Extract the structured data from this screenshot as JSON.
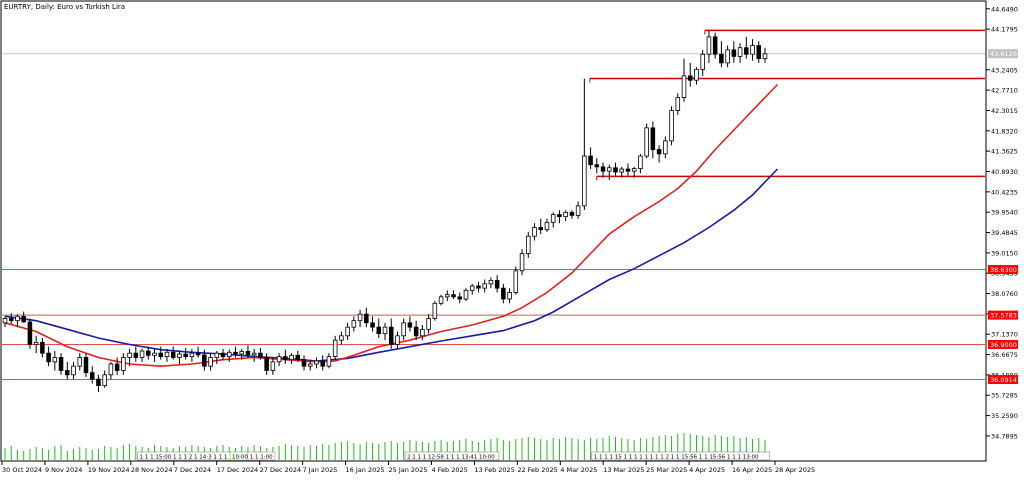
{
  "chart_title": "EURTRY, Daily:  Euro vs Turkish Lira",
  "chart_data": {
    "type": "candlestick",
    "symbol": "EURTRY",
    "timeframe": "Daily",
    "description": "Euro vs Turkish Lira",
    "y_axis_labels": [
      "44.6490",
      "44.1795",
      "43.2405",
      "42.7710",
      "42.3015",
      "41.8320",
      "41.3625",
      "40.8930",
      "40.4235",
      "39.9540",
      "39.4845",
      "39.0150",
      "38.5455",
      "38.0760",
      "37.6065",
      "37.1370",
      "36.6675",
      "36.1980",
      "35.7285",
      "35.2590",
      "34.7895"
    ],
    "ylim": [
      34.58,
      44.69
    ],
    "x_axis_labels": [
      "30 Oct 2024",
      "9 Nov 2024",
      "19 Nov 2024",
      "28 Nov 2024",
      "7 Dec 2024",
      "17 Dec 2024",
      "27 Dec 2024",
      "7 Jan 2025",
      "16 Jan 2025",
      "25 Jan 2025",
      "4 Feb 2025",
      "13 Feb 2025",
      "22 Feb 2025",
      "4 Mar 2025",
      "13 Mar 2025",
      "25 Mar 2025",
      "4 Apr 2025",
      "16 Apr 2025",
      "28 Apr 2025"
    ],
    "price_tags": [
      {
        "value": "43.6120",
        "color": "#c0c0c0",
        "text_color": "#ffffff"
      },
      {
        "value": "38.6300",
        "color": "#ff0000",
        "text_color": "#ffffff"
      },
      {
        "value": "37.5783",
        "color": "#ff0000",
        "text_color": "#ffffff"
      },
      {
        "value": "36.9000",
        "color": "#ff0000",
        "text_color": "#ffffff"
      },
      {
        "value": "36.0914",
        "color": "#ff0000",
        "text_color": "#ffffff"
      }
    ],
    "horizontal_levels": [
      {
        "price": 44.15,
        "color": "#cc0000",
        "from": 0.715,
        "to": 1.0
      },
      {
        "price": 43.04,
        "color": "#cc0000",
        "from": 0.598,
        "to": 1.0
      },
      {
        "price": 40.78,
        "color": "#cc0000",
        "from": 0.605,
        "to": 1.0
      },
      {
        "price": 38.63,
        "color": "#e05050",
        "from": 0.0,
        "to": 1.0
      },
      {
        "price": 37.5783,
        "color": "#e05050",
        "from": 0.0,
        "to": 1.0
      },
      {
        "price": 36.9,
        "color": "#e05050",
        "from": 0.0,
        "to": 1.0
      },
      {
        "price": 36.0914,
        "color": "#e05050",
        "from": 0.0,
        "to": 1.0
      }
    ],
    "last_price": 43.612,
    "candles": [
      [
        37.4,
        37.55,
        37.3,
        37.5
      ],
      [
        37.5,
        37.62,
        37.38,
        37.45
      ],
      [
        37.45,
        37.6,
        37.3,
        37.55
      ],
      [
        37.55,
        37.66,
        37.4,
        37.42
      ],
      [
        37.42,
        37.5,
        36.8,
        36.9
      ],
      [
        36.9,
        37.1,
        36.7,
        36.95
      ],
      [
        36.95,
        37.05,
        36.6,
        36.7
      ],
      [
        36.7,
        36.85,
        36.4,
        36.5
      ],
      [
        36.5,
        36.75,
        36.3,
        36.6
      ],
      [
        36.6,
        36.7,
        36.2,
        36.3
      ],
      [
        36.3,
        36.5,
        36.1,
        36.2
      ],
      [
        36.2,
        36.5,
        36.1,
        36.4
      ],
      [
        36.4,
        36.7,
        36.3,
        36.6
      ],
      [
        36.6,
        36.7,
        36.15,
        36.25
      ],
      [
        36.25,
        36.4,
        36.0,
        36.1
      ],
      [
        36.1,
        36.2,
        35.8,
        35.95
      ],
      [
        35.95,
        36.3,
        35.9,
        36.2
      ],
      [
        36.2,
        36.5,
        36.1,
        36.45
      ],
      [
        36.45,
        36.6,
        36.2,
        36.3
      ],
      [
        36.3,
        36.7,
        36.2,
        36.6
      ],
      [
        36.6,
        36.8,
        36.4,
        36.7
      ],
      [
        36.7,
        36.85,
        36.5,
        36.6
      ],
      [
        36.6,
        36.8,
        36.5,
        36.75
      ],
      [
        36.75,
        36.85,
        36.55,
        36.65
      ],
      [
        36.65,
        36.8,
        36.5,
        36.7
      ],
      [
        36.7,
        36.85,
        36.55,
        36.62
      ],
      [
        36.62,
        36.8,
        36.5,
        36.72
      ],
      [
        36.72,
        36.85,
        36.55,
        36.6
      ],
      [
        36.6,
        36.75,
        36.45,
        36.68
      ],
      [
        36.68,
        36.82,
        36.55,
        36.62
      ],
      [
        36.62,
        36.8,
        36.5,
        36.7
      ],
      [
        36.7,
        36.85,
        36.6,
        36.66
      ],
      [
        36.66,
        36.78,
        36.3,
        36.4
      ],
      [
        36.4,
        36.7,
        36.3,
        36.6
      ],
      [
        36.6,
        36.75,
        36.45,
        36.7
      ],
      [
        36.7,
        36.8,
        36.55,
        36.62
      ],
      [
        36.62,
        36.78,
        36.5,
        36.72
      ],
      [
        36.72,
        36.85,
        36.6,
        36.68
      ],
      [
        36.68,
        36.8,
        36.55,
        36.74
      ],
      [
        36.74,
        36.88,
        36.6,
        36.66
      ],
      [
        36.66,
        36.8,
        36.5,
        36.7
      ],
      [
        36.7,
        36.82,
        36.55,
        36.6
      ],
      [
        36.6,
        36.7,
        36.2,
        36.3
      ],
      [
        36.3,
        36.6,
        36.2,
        36.5
      ],
      [
        36.5,
        36.7,
        36.4,
        36.62
      ],
      [
        36.62,
        36.78,
        36.45,
        36.55
      ],
      [
        36.55,
        36.7,
        36.45,
        36.65
      ],
      [
        36.65,
        36.75,
        36.5,
        36.55
      ],
      [
        36.55,
        36.65,
        36.3,
        36.4
      ],
      [
        36.4,
        36.55,
        36.3,
        36.45
      ],
      [
        36.45,
        36.6,
        36.35,
        36.52
      ],
      [
        36.52,
        36.65,
        36.3,
        36.4
      ],
      [
        36.4,
        36.7,
        36.35,
        36.62
      ],
      [
        36.62,
        37.1,
        36.55,
        37.0
      ],
      [
        37.0,
        37.2,
        36.9,
        37.1
      ],
      [
        37.1,
        37.4,
        37.0,
        37.3
      ],
      [
        37.3,
        37.55,
        37.2,
        37.45
      ],
      [
        37.45,
        37.7,
        37.3,
        37.6
      ],
      [
        37.6,
        37.75,
        37.3,
        37.4
      ],
      [
        37.4,
        37.55,
        37.2,
        37.3
      ],
      [
        37.3,
        37.5,
        37.05,
        37.15
      ],
      [
        37.15,
        37.4,
        37.0,
        37.3
      ],
      [
        37.3,
        37.5,
        36.8,
        36.9
      ],
      [
        36.9,
        37.2,
        36.8,
        37.1
      ],
      [
        37.1,
        37.5,
        37.0,
        37.4
      ],
      [
        37.4,
        37.55,
        37.2,
        37.3
      ],
      [
        37.3,
        37.45,
        37.0,
        37.1
      ],
      [
        37.1,
        37.35,
        37.0,
        37.25
      ],
      [
        37.25,
        37.6,
        37.15,
        37.5
      ],
      [
        37.5,
        37.9,
        37.45,
        37.85
      ],
      [
        37.85,
        38.05,
        37.8,
        38.0
      ],
      [
        38.0,
        38.15,
        37.9,
        38.05
      ],
      [
        38.05,
        38.15,
        37.95,
        38.0
      ],
      [
        38.0,
        38.1,
        37.85,
        37.95
      ],
      [
        37.95,
        38.2,
        37.9,
        38.15
      ],
      [
        38.15,
        38.3,
        38.05,
        38.25
      ],
      [
        38.25,
        38.35,
        38.1,
        38.2
      ],
      [
        38.2,
        38.4,
        38.1,
        38.3
      ],
      [
        38.3,
        38.45,
        38.2,
        38.38
      ],
      [
        38.38,
        38.5,
        38.1,
        38.2
      ],
      [
        38.2,
        38.3,
        37.85,
        37.95
      ],
      [
        37.95,
        38.2,
        37.85,
        38.1
      ],
      [
        38.1,
        38.7,
        38.05,
        38.6
      ],
      [
        38.6,
        39.1,
        38.5,
        39.0
      ],
      [
        39.0,
        39.5,
        38.9,
        39.4
      ],
      [
        39.4,
        39.7,
        39.3,
        39.6
      ],
      [
        39.6,
        39.8,
        39.45,
        39.55
      ],
      [
        39.55,
        39.8,
        39.5,
        39.72
      ],
      [
        39.72,
        39.95,
        39.6,
        39.9
      ],
      [
        39.9,
        40.0,
        39.7,
        39.85
      ],
      [
        39.85,
        40.0,
        39.75,
        39.95
      ],
      [
        39.95,
        40.0,
        39.8,
        39.88
      ],
      [
        39.88,
        40.2,
        39.8,
        40.1
      ],
      [
        40.1,
        43.04,
        40.0,
        41.25
      ],
      [
        41.25,
        41.45,
        40.95,
        41.05
      ],
      [
        41.05,
        41.2,
        40.85,
        41.0
      ],
      [
        41.0,
        41.1,
        40.75,
        40.9
      ],
      [
        40.9,
        41.05,
        40.7,
        40.98
      ],
      [
        40.98,
        41.1,
        40.8,
        40.88
      ],
      [
        40.88,
        41.0,
        40.75,
        40.95
      ],
      [
        40.95,
        41.08,
        40.8,
        40.9
      ],
      [
        40.9,
        41.0,
        40.75,
        40.96
      ],
      [
        40.96,
        41.3,
        40.85,
        41.25
      ],
      [
        41.25,
        42.0,
        41.2,
        41.9
      ],
      [
        41.9,
        42.05,
        41.2,
        41.4
      ],
      [
        41.4,
        41.5,
        41.1,
        41.3
      ],
      [
        41.3,
        41.7,
        41.2,
        41.6
      ],
      [
        41.6,
        42.4,
        41.5,
        42.3
      ],
      [
        42.3,
        42.7,
        42.2,
        42.6
      ],
      [
        42.6,
        43.5,
        42.5,
        43.1
      ],
      [
        43.1,
        43.4,
        42.85,
        43.0
      ],
      [
        43.0,
        43.3,
        42.9,
        43.25
      ],
      [
        43.25,
        43.7,
        43.1,
        43.6
      ],
      [
        43.6,
        44.15,
        43.4,
        44.0
      ],
      [
        44.0,
        44.1,
        43.5,
        43.6
      ],
      [
        43.6,
        43.9,
        43.3,
        43.4
      ],
      [
        43.4,
        43.8,
        43.3,
        43.7
      ],
      [
        43.7,
        43.9,
        43.4,
        43.55
      ],
      [
        43.55,
        43.85,
        43.4,
        43.75
      ],
      [
        43.75,
        44.0,
        43.5,
        43.6
      ],
      [
        43.6,
        43.95,
        43.45,
        43.8
      ],
      [
        43.8,
        43.9,
        43.4,
        43.5
      ],
      [
        43.5,
        43.75,
        43.4,
        43.61
      ]
    ],
    "ma_fast": [
      [
        0,
        37.4
      ],
      [
        5,
        37.2
      ],
      [
        10,
        36.85
      ],
      [
        15,
        36.6
      ],
      [
        20,
        36.45
      ],
      [
        25,
        36.4
      ],
      [
        30,
        36.45
      ],
      [
        35,
        36.55
      ],
      [
        40,
        36.6
      ],
      [
        45,
        36.55
      ],
      [
        50,
        36.5
      ],
      [
        53,
        36.52
      ],
      [
        56,
        36.65
      ],
      [
        60,
        36.85
      ],
      [
        65,
        37.0
      ],
      [
        70,
        37.2
      ],
      [
        75,
        37.35
      ],
      [
        80,
        37.55
      ],
      [
        83,
        37.75
      ],
      [
        87,
        38.1
      ],
      [
        91,
        38.55
      ],
      [
        94,
        39.0
      ],
      [
        97,
        39.45
      ],
      [
        101,
        39.85
      ],
      [
        105,
        40.2
      ],
      [
        108,
        40.5
      ],
      [
        111,
        40.9
      ],
      [
        114,
        41.4
      ],
      [
        117,
        41.85
      ],
      [
        120,
        42.3
      ],
      [
        122,
        42.6
      ],
      [
        124,
        42.9
      ]
    ],
    "ma_slow": [
      [
        0,
        37.55
      ],
      [
        5,
        37.45
      ],
      [
        10,
        37.25
      ],
      [
        15,
        37.05
      ],
      [
        20,
        36.9
      ],
      [
        25,
        36.78
      ],
      [
        30,
        36.72
      ],
      [
        35,
        36.68
      ],
      [
        40,
        36.62
      ],
      [
        45,
        36.58
      ],
      [
        50,
        36.52
      ],
      [
        55,
        36.58
      ],
      [
        60,
        36.72
      ],
      [
        65,
        36.85
      ],
      [
        70,
        36.98
      ],
      [
        75,
        37.1
      ],
      [
        80,
        37.22
      ],
      [
        85,
        37.45
      ],
      [
        88,
        37.65
      ],
      [
        91,
        37.9
      ],
      [
        94,
        38.15
      ],
      [
        97,
        38.4
      ],
      [
        101,
        38.65
      ],
      [
        105,
        38.95
      ],
      [
        109,
        39.25
      ],
      [
        113,
        39.6
      ],
      [
        117,
        40.0
      ],
      [
        120,
        40.35
      ],
      [
        122,
        40.65
      ],
      [
        124,
        40.95
      ]
    ],
    "volume_heights": [
      12,
      14,
      10,
      9,
      11,
      13,
      12,
      10,
      14,
      15,
      9,
      11,
      13,
      12,
      10,
      11,
      14,
      13,
      12,
      15,
      16,
      14,
      13,
      12,
      15,
      14,
      13,
      12,
      14,
      13,
      15,
      14,
      13,
      12,
      14,
      15,
      13,
      12,
      14,
      13,
      15,
      14,
      12,
      13,
      14,
      16,
      15,
      14,
      13,
      15,
      14,
      16,
      15,
      17,
      18,
      19,
      17,
      16,
      18,
      17,
      16,
      18,
      19,
      17,
      18,
      20,
      19,
      18,
      17,
      19,
      20,
      18,
      19,
      20,
      21,
      19,
      18,
      20,
      21,
      22,
      20,
      19,
      21,
      22,
      23,
      22,
      21,
      20,
      22,
      21,
      23,
      22,
      21,
      20,
      22,
      21,
      22,
      24,
      23,
      22,
      21,
      20,
      22,
      21,
      23,
      24,
      25,
      24,
      26,
      27,
      26,
      25,
      24,
      23,
      25,
      24,
      23,
      24,
      22,
      23,
      21,
      22,
      20
    ],
    "volume_tags": [
      {
        "text": "1 1 1 15:00 1 1 1 2 1 14:3 1 1 1 14:00 1 1",
        "at": 0.138
      },
      {
        "text": "10:00",
        "at": 0.232,
        "color": "#6ad46a"
      },
      {
        "text": "1 1 1:00",
        "at": 0.25,
        "color": "#e08080"
      },
      {
        "text": "2 1 1 1 12:58 1 1 1 13:41 10:00",
        "at": 0.41
      },
      {
        "text": "1 1 1 1 15 1 1 1 1 1 1 1 1 2 1 1 15:56 1 1 15:56 1 1 1 13:00",
        "at": 0.6
      }
    ]
  }
}
